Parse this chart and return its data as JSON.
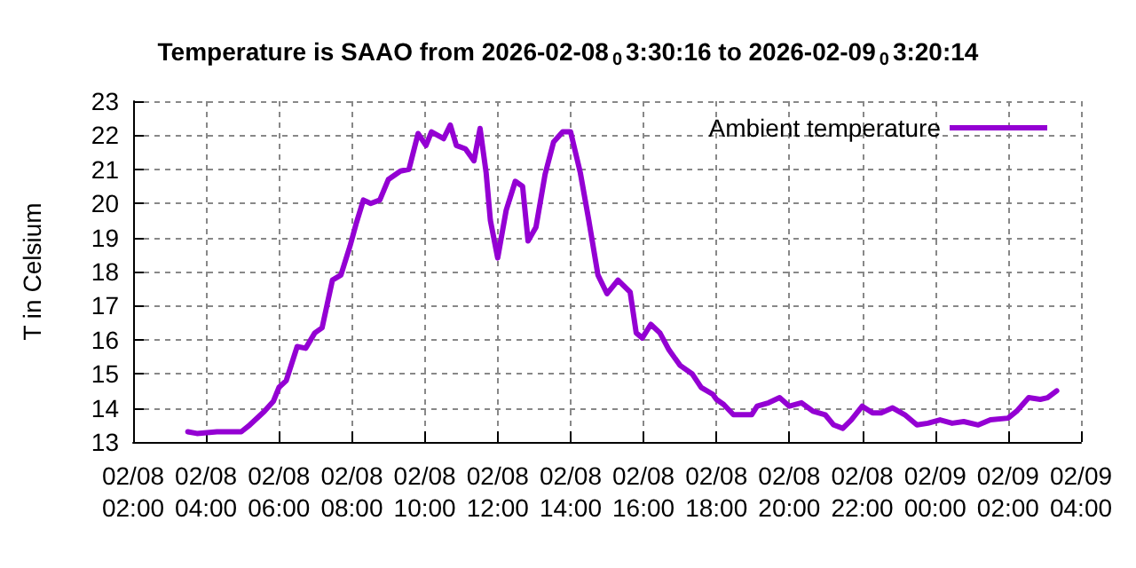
{
  "chart_data": {
    "type": "line",
    "title": "Temperature is SAAO from 2026-02-08$_{0}$3:30:16 to 2026-02-09$_{0}$3:20:14",
    "ylabel": "T in Celsium",
    "xlim": [
      "2026-02-08T02:00",
      "2026-02-09T04:00"
    ],
    "xticks": [
      {
        "value": "2026-02-08T02:00",
        "label": "02/08\n02:00"
      },
      {
        "value": "2026-02-08T04:00",
        "label": "02/08\n04:00"
      },
      {
        "value": "2026-02-08T06:00",
        "label": "02/08\n06:00"
      },
      {
        "value": "2026-02-08T08:00",
        "label": "02/08\n08:00"
      },
      {
        "value": "2026-02-08T10:00",
        "label": "02/08\n10:00"
      },
      {
        "value": "2026-02-08T12:00",
        "label": "02/08\n12:00"
      },
      {
        "value": "2026-02-08T14:00",
        "label": "02/08\n14:00"
      },
      {
        "value": "2026-02-08T16:00",
        "label": "02/08\n16:00"
      },
      {
        "value": "2026-02-08T18:00",
        "label": "02/08\n18:00"
      },
      {
        "value": "2026-02-08T20:00",
        "label": "02/08\n20:00"
      },
      {
        "value": "2026-02-08T22:00",
        "label": "02/08\n22:00"
      },
      {
        "value": "2026-02-09T00:00",
        "label": "02/09\n00:00"
      },
      {
        "value": "2026-02-09T02:00",
        "label": "02/09\n02:00"
      },
      {
        "value": "2026-02-09T04:00",
        "label": "02/09\n04:00"
      }
    ],
    "ylim": [
      13,
      23
    ],
    "yticks": [
      13,
      14,
      15,
      16,
      17,
      18,
      19,
      20,
      21,
      22,
      23
    ],
    "grid": true,
    "legend": "top right",
    "line_style": "solid",
    "marker": "none",
    "series": [
      {
        "name": "Ambient temperature",
        "color": "#9400d3",
        "x": [
          "2026-02-08T03:30",
          "2026-02-08T03:45",
          "2026-02-08T04:18",
          "2026-02-08T04:58",
          "2026-02-08T05:12",
          "2026-02-08T05:36",
          "2026-02-08T05:51",
          "2026-02-08T06:00",
          "2026-02-08T06:12",
          "2026-02-08T06:30",
          "2026-02-08T06:44",
          "2026-02-08T06:59",
          "2026-02-08T07:11",
          "2026-02-08T07:28",
          "2026-02-08T07:42",
          "2026-02-08T07:57",
          "2026-02-08T08:07",
          "2026-02-08T08:19",
          "2026-02-08T08:31",
          "2026-02-08T08:46",
          "2026-02-08T09:00",
          "2026-02-08T09:20",
          "2026-02-08T09:34",
          "2026-02-08T09:49",
          "2026-02-08T10:02",
          "2026-02-08T10:11",
          "2026-02-08T10:31",
          "2026-02-08T10:42",
          "2026-02-08T10:52",
          "2026-02-08T11:07",
          "2026-02-08T11:21",
          "2026-02-08T11:31",
          "2026-02-08T11:41",
          "2026-02-08T11:48",
          "2026-02-08T12:00",
          "2026-02-08T12:14",
          "2026-02-08T12:29",
          "2026-02-08T12:41",
          "2026-02-08T12:50",
          "2026-02-08T13:03",
          "2026-02-08T13:18",
          "2026-02-08T13:32",
          "2026-02-08T13:47",
          "2026-02-08T14:00",
          "2026-02-08T14:16",
          "2026-02-08T14:30",
          "2026-02-08T14:45",
          "2026-02-08T15:00",
          "2026-02-08T15:18",
          "2026-02-08T15:38",
          "2026-02-08T15:48",
          "2026-02-08T15:58",
          "2026-02-08T16:12",
          "2026-02-08T16:27",
          "2026-02-08T16:42",
          "2026-02-08T17:00",
          "2026-02-08T17:20",
          "2026-02-08T17:35",
          "2026-02-08T17:54",
          "2026-02-08T18:00",
          "2026-02-08T18:12",
          "2026-02-08T18:28",
          "2026-02-08T18:58",
          "2026-02-08T19:07",
          "2026-02-08T19:26",
          "2026-02-08T19:44",
          "2026-02-08T20:00",
          "2026-02-08T20:20",
          "2026-02-08T20:39",
          "2026-02-08T20:59",
          "2026-02-08T21:13",
          "2026-02-08T21:28",
          "2026-02-08T21:42",
          "2026-02-08T22:00",
          "2026-02-08T22:17",
          "2026-02-08T22:31",
          "2026-02-08T22:50",
          "2026-02-08T23:10",
          "2026-02-08T23:30",
          "2026-02-08T23:48",
          "2026-02-09T00:08",
          "2026-02-09T00:28",
          "2026-02-09T00:47",
          "2026-02-09T01:11",
          "2026-02-09T01:31",
          "2026-02-09T02:00",
          "2026-02-09T02:14",
          "2026-02-09T02:34",
          "2026-02-09T02:53",
          "2026-02-09T03:05",
          "2026-02-09T03:20"
        ],
        "values": [
          13.3,
          13.25,
          13.3,
          13.3,
          13.5,
          13.9,
          14.2,
          14.6,
          14.8,
          15.8,
          15.75,
          16.2,
          16.35,
          17.75,
          17.9,
          18.75,
          19.4,
          20.1,
          20.0,
          20.1,
          20.7,
          20.95,
          21.0,
          22.05,
          21.7,
          22.1,
          21.9,
          22.3,
          21.7,
          21.6,
          21.25,
          22.2,
          20.9,
          19.5,
          18.4,
          19.8,
          20.65,
          20.5,
          18.9,
          19.3,
          20.85,
          21.8,
          22.1,
          22.1,
          20.9,
          19.5,
          17.9,
          17.35,
          17.75,
          17.4,
          16.2,
          16.05,
          16.45,
          16.2,
          15.7,
          15.25,
          15.0,
          14.6,
          14.4,
          14.25,
          14.1,
          13.8,
          13.8,
          14.05,
          14.15,
          14.3,
          14.05,
          14.15,
          13.9,
          13.8,
          13.5,
          13.4,
          13.65,
          14.05,
          13.85,
          13.85,
          14.0,
          13.8,
          13.5,
          13.55,
          13.65,
          13.55,
          13.6,
          13.5,
          13.65,
          13.7,
          13.9,
          14.3,
          14.25,
          14.3,
          14.5
        ]
      }
    ]
  }
}
